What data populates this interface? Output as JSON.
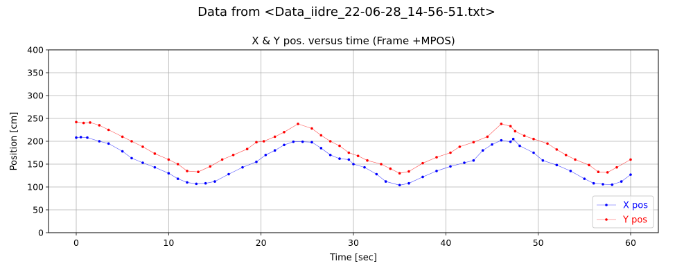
{
  "figure": {
    "suptitle": "Data from <Data_iidre_22-06-28_14-56-51.txt>"
  },
  "chart_data": {
    "type": "line",
    "title": "X & Y pos. versus time (Frame +MPOS)",
    "xlabel": "Time [sec]",
    "ylabel": "Position [cm]",
    "xlim": [
      -3,
      63
    ],
    "ylim": [
      0,
      400
    ],
    "xticks": [
      0,
      10,
      20,
      30,
      40,
      50,
      60
    ],
    "yticks": [
      0,
      50,
      100,
      150,
      200,
      250,
      300,
      350,
      400
    ],
    "grid": true,
    "legend_position": "lower-right",
    "series": [
      {
        "name": "X pos",
        "color": "#0000ff",
        "x": [
          0,
          0.5,
          1.2,
          2.5,
          3.5,
          5,
          6,
          7.2,
          8.5,
          10,
          11,
          12,
          13,
          14,
          15,
          16.5,
          18,
          19.5,
          20.5,
          21.5,
          22.5,
          23.5,
          24.5,
          25.5,
          26.5,
          27.5,
          28.5,
          29.5,
          30,
          31.2,
          32.5,
          33.5,
          35,
          36,
          37.5,
          39,
          40.5,
          42,
          43,
          44,
          45,
          46,
          47,
          47.3,
          48,
          49.5,
          50.5,
          52,
          53.5,
          55,
          56,
          57,
          58,
          59,
          60
        ],
        "y": [
          208,
          209,
          208,
          200,
          195,
          178,
          163,
          153,
          143,
          130,
          118,
          110,
          107,
          108,
          112,
          128,
          143,
          155,
          170,
          180,
          192,
          199,
          199,
          198,
          185,
          170,
          162,
          160,
          150,
          143,
          128,
          112,
          104,
          108,
          122,
          135,
          145,
          153,
          158,
          180,
          193,
          202,
          199,
          205,
          190,
          175,
          158,
          148,
          135,
          118,
          108,
          106,
          105,
          112,
          127
        ]
      },
      {
        "name": "Y pos",
        "color": "#ff0000",
        "x": [
          0,
          0.8,
          1.5,
          2.5,
          3.5,
          5,
          6,
          7.2,
          8.5,
          10,
          11,
          12,
          13.2,
          14.5,
          15.8,
          17,
          18.5,
          19.5,
          20.3,
          21.5,
          22.5,
          24,
          25.5,
          26.5,
          27.5,
          28.5,
          29.5,
          30.5,
          31.5,
          33,
          34,
          35,
          36,
          37.5,
          39,
          40.5,
          41.5,
          43,
          44.5,
          46,
          47,
          47.5,
          48.5,
          49.5,
          51,
          52,
          53,
          54,
          55.5,
          56.5,
          57.5,
          58.5,
          60
        ],
        "y": [
          242,
          240,
          241,
          235,
          225,
          210,
          200,
          188,
          173,
          160,
          150,
          135,
          133,
          145,
          160,
          170,
          183,
          198,
          200,
          210,
          220,
          238,
          228,
          213,
          200,
          190,
          175,
          168,
          158,
          150,
          140,
          130,
          134,
          152,
          165,
          175,
          188,
          198,
          210,
          238,
          233,
          222,
          212,
          205,
          195,
          182,
          170,
          160,
          148,
          133,
          132,
          143,
          160
        ]
      }
    ]
  }
}
